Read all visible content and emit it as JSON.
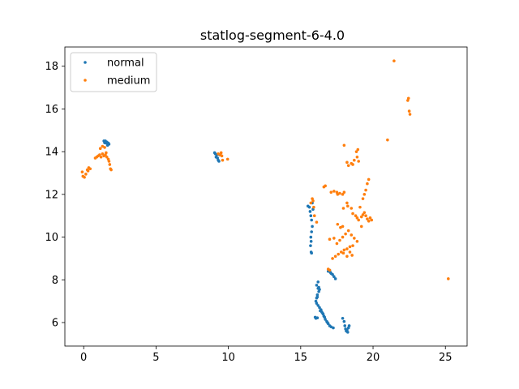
{
  "chart_data": {
    "type": "scatter",
    "title": "statlog-segment-6-4.0",
    "xlabel": "",
    "ylabel": "",
    "xlim": [
      -1.3,
      26.5
    ],
    "ylim": [
      4.9,
      18.9
    ],
    "xticks": [
      0,
      5,
      10,
      15,
      20,
      25
    ],
    "yticks": [
      6,
      8,
      10,
      12,
      14,
      16,
      18
    ],
    "legend_position": "top-left",
    "series": [
      {
        "name": "normal",
        "color": "#1f77b4",
        "points": [
          [
            1.4,
            14.5
          ],
          [
            1.5,
            14.5
          ],
          [
            1.6,
            14.45
          ],
          [
            1.7,
            14.4
          ],
          [
            1.75,
            14.35
          ],
          [
            1.55,
            14.4
          ],
          [
            1.45,
            14.42
          ],
          [
            1.65,
            14.3
          ],
          [
            9.05,
            13.95
          ],
          [
            9.1,
            13.9
          ],
          [
            9.2,
            13.85
          ],
          [
            9.25,
            13.7
          ],
          [
            9.3,
            13.6
          ],
          [
            9.35,
            13.55
          ],
          [
            9.15,
            13.75
          ],
          [
            9.4,
            13.85
          ],
          [
            15.5,
            11.45
          ],
          [
            15.6,
            11.4
          ],
          [
            15.65,
            11.2
          ],
          [
            15.7,
            11.0
          ],
          [
            15.75,
            10.8
          ],
          [
            15.8,
            10.5
          ],
          [
            15.75,
            10.25
          ],
          [
            15.7,
            10.0
          ],
          [
            15.72,
            9.8
          ],
          [
            15.68,
            9.6
          ],
          [
            15.72,
            9.3
          ],
          [
            15.75,
            9.25
          ],
          [
            15.8,
            11.6
          ],
          [
            15.85,
            11.3
          ],
          [
            16.9,
            8.4
          ],
          [
            17.05,
            8.35
          ],
          [
            17.2,
            8.25
          ],
          [
            17.3,
            8.15
          ],
          [
            17.4,
            8.05
          ],
          [
            17.1,
            8.3
          ],
          [
            17.0,
            8.45
          ],
          [
            16.1,
            7.75
          ],
          [
            16.2,
            7.6
          ],
          [
            16.25,
            7.45
          ],
          [
            16.15,
            7.3
          ],
          [
            16.1,
            7.15
          ],
          [
            16.05,
            7.0
          ],
          [
            16.1,
            6.9
          ],
          [
            16.2,
            6.8
          ],
          [
            16.3,
            6.7
          ],
          [
            16.4,
            6.6
          ],
          [
            16.5,
            6.45
          ],
          [
            16.6,
            6.3
          ],
          [
            16.7,
            6.15
          ],
          [
            16.8,
            6.05
          ],
          [
            16.9,
            5.95
          ],
          [
            17.0,
            5.85
          ],
          [
            17.1,
            5.8
          ],
          [
            17.25,
            5.75
          ],
          [
            16.25,
            7.65
          ],
          [
            16.15,
            7.2
          ],
          [
            16.35,
            6.55
          ],
          [
            16.45,
            6.5
          ],
          [
            16.55,
            6.4
          ],
          [
            16.65,
            6.25
          ],
          [
            16.85,
            6.0
          ],
          [
            16.0,
            6.25
          ],
          [
            16.05,
            6.2
          ],
          [
            16.15,
            6.22
          ],
          [
            16.2,
            7.9
          ],
          [
            16.3,
            7.55
          ],
          [
            17.9,
            6.2
          ],
          [
            18.0,
            6.05
          ],
          [
            18.05,
            5.85
          ],
          [
            18.1,
            5.7
          ],
          [
            18.2,
            5.65
          ],
          [
            18.3,
            5.75
          ],
          [
            18.35,
            5.85
          ],
          [
            18.25,
            5.55
          ],
          [
            18.15,
            5.6
          ]
        ]
      },
      {
        "name": "medium",
        "color": "#ff7f0e",
        "points": [
          [
            -0.1,
            13.05
          ],
          [
            -0.05,
            12.85
          ],
          [
            0.05,
            12.8
          ],
          [
            0.15,
            12.95
          ],
          [
            0.25,
            13.15
          ],
          [
            0.35,
            13.25
          ],
          [
            0.45,
            13.2
          ],
          [
            0.3,
            13.1
          ],
          [
            0.8,
            13.7
          ],
          [
            0.9,
            13.75
          ],
          [
            1.0,
            13.8
          ],
          [
            1.1,
            13.85
          ],
          [
            1.2,
            13.75
          ],
          [
            1.3,
            13.9
          ],
          [
            1.4,
            13.8
          ],
          [
            1.5,
            13.85
          ],
          [
            1.6,
            13.75
          ],
          [
            1.7,
            13.65
          ],
          [
            1.75,
            13.55
          ],
          [
            1.8,
            13.4
          ],
          [
            1.85,
            13.2
          ],
          [
            1.9,
            13.15
          ],
          [
            1.15,
            14.15
          ],
          [
            1.3,
            14.25
          ],
          [
            1.45,
            14.2
          ],
          [
            1.55,
            13.95
          ],
          [
            9.3,
            13.9
          ],
          [
            9.45,
            13.85
          ],
          [
            9.55,
            13.8
          ],
          [
            9.6,
            13.6
          ],
          [
            9.95,
            13.65
          ],
          [
            9.5,
            13.95
          ],
          [
            15.7,
            11.6
          ],
          [
            15.85,
            11.7
          ],
          [
            15.9,
            11.4
          ],
          [
            15.95,
            11.0
          ],
          [
            16.1,
            10.7
          ],
          [
            15.8,
            11.8
          ],
          [
            16.6,
            12.35
          ],
          [
            16.7,
            12.4
          ],
          [
            17.1,
            12.1
          ],
          [
            17.3,
            12.15
          ],
          [
            17.5,
            12.1
          ],
          [
            17.7,
            12.05
          ],
          [
            17.9,
            12.0
          ],
          [
            18.0,
            12.1
          ],
          [
            17.55,
            12.0
          ],
          [
            17.55,
            10.6
          ],
          [
            17.75,
            10.45
          ],
          [
            17.9,
            10.5
          ],
          [
            17.95,
            11.35
          ],
          [
            18.2,
            11.6
          ],
          [
            18.25,
            11.45
          ],
          [
            18.5,
            11.35
          ],
          [
            18.6,
            11.1
          ],
          [
            18.8,
            11.0
          ],
          [
            18.9,
            10.9
          ],
          [
            19.0,
            10.8
          ],
          [
            19.2,
            10.95
          ],
          [
            19.3,
            11.05
          ],
          [
            19.4,
            11.15
          ],
          [
            19.5,
            11.0
          ],
          [
            19.6,
            10.85
          ],
          [
            19.7,
            10.75
          ],
          [
            19.8,
            10.9
          ],
          [
            19.9,
            10.8
          ],
          [
            19.1,
            11.4
          ],
          [
            19.3,
            11.8
          ],
          [
            19.4,
            12.0
          ],
          [
            19.5,
            12.2
          ],
          [
            19.6,
            12.5
          ],
          [
            19.7,
            12.7
          ],
          [
            19.2,
            10.5
          ],
          [
            17.2,
            9.0
          ],
          [
            17.4,
            9.1
          ],
          [
            17.6,
            9.2
          ],
          [
            17.8,
            9.3
          ],
          [
            18.0,
            9.4
          ],
          [
            18.2,
            9.45
          ],
          [
            18.4,
            9.55
          ],
          [
            18.6,
            9.6
          ],
          [
            17.5,
            9.7
          ],
          [
            17.7,
            9.85
          ],
          [
            17.9,
            10.0
          ],
          [
            18.1,
            10.15
          ],
          [
            18.3,
            10.3
          ],
          [
            18.5,
            10.1
          ],
          [
            18.7,
            9.95
          ],
          [
            18.9,
            9.8
          ],
          [
            17.0,
            9.9
          ],
          [
            17.3,
            9.95
          ],
          [
            18.4,
            9.3
          ],
          [
            18.55,
            9.15
          ],
          [
            18.2,
            9.1
          ],
          [
            17.95,
            9.25
          ],
          [
            18.2,
            13.5
          ],
          [
            18.3,
            13.35
          ],
          [
            18.5,
            13.45
          ],
          [
            18.7,
            13.6
          ],
          [
            18.9,
            13.75
          ],
          [
            19.0,
            13.55
          ],
          [
            18.6,
            13.4
          ],
          [
            18.85,
            14.0
          ],
          [
            18.95,
            14.1
          ],
          [
            18.0,
            14.3
          ],
          [
            16.9,
            8.5
          ],
          [
            17.0,
            8.45
          ],
          [
            21.0,
            14.55
          ],
          [
            21.45,
            18.25
          ],
          [
            22.4,
            16.4
          ],
          [
            22.45,
            16.5
          ],
          [
            22.5,
            15.9
          ],
          [
            22.55,
            15.75
          ],
          [
            25.2,
            8.05
          ]
        ]
      }
    ]
  }
}
